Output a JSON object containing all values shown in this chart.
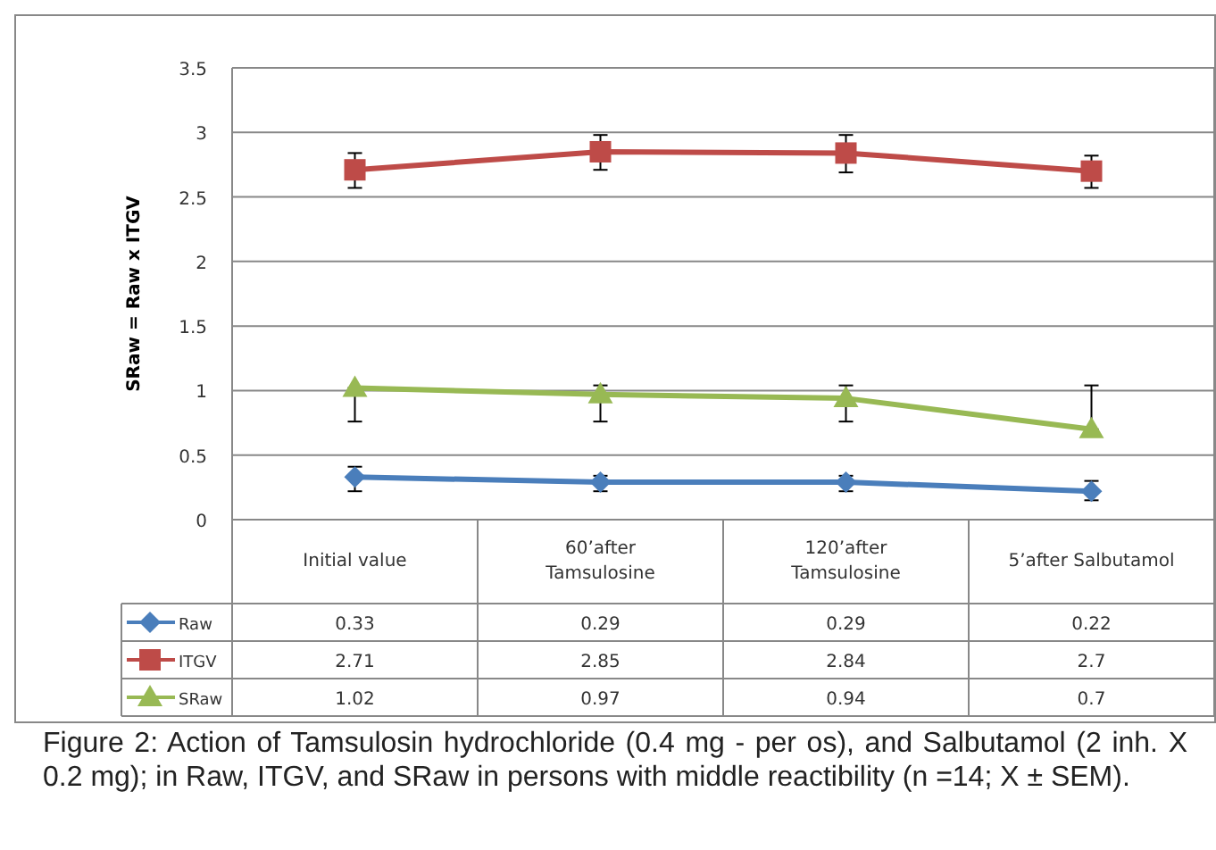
{
  "chart_data": {
    "type": "line",
    "ylabel": "SRaw = Raw x ITGV",
    "categories": [
      "Initial value",
      "60’after Tamsulosine",
      "120’after Tamsulosine",
      "5’after Salbutamol"
    ],
    "series": [
      {
        "name": "Raw",
        "color": "#4a7ebb",
        "marker": "diamond",
        "values": [
          0.33,
          0.29,
          0.29,
          0.22
        ],
        "errors": [
          [
            0.22,
            0.41
          ],
          [
            0.22,
            0.34
          ],
          [
            0.22,
            0.34
          ],
          [
            0.15,
            0.3
          ]
        ]
      },
      {
        "name": "ITGV",
        "color": "#be4b48",
        "marker": "square",
        "values": [
          2.71,
          2.85,
          2.84,
          2.7
        ],
        "errors": [
          [
            2.57,
            2.84
          ],
          [
            2.71,
            2.98
          ],
          [
            2.69,
            2.98
          ],
          [
            2.57,
            2.82
          ]
        ]
      },
      {
        "name": "SRaw",
        "color": "#98b954",
        "marker": "triangle",
        "values": [
          1.02,
          0.97,
          0.94,
          0.7
        ],
        "errors": [
          [
            0.76,
            1.02
          ],
          [
            0.76,
            1.04
          ],
          [
            0.76,
            1.04
          ],
          [
            0.7,
            1.04
          ]
        ]
      }
    ],
    "ylim": [
      0,
      3.5
    ],
    "yticks": [
      0,
      0.5,
      1,
      1.5,
      2,
      2.5,
      3,
      3.5
    ],
    "grid": "y",
    "legend": "bottom left",
    "data_labels": true,
    "annotations": [
      "Figure 2: Action of Tamsulosin hydrochloride (0.4 mg - per os), and Salbutamol (2 inh. X 0.2 mg); in Raw, ITGV, and SRaw in persons with middle reactibility (n =14; X ± SEM)."
    ]
  }
}
